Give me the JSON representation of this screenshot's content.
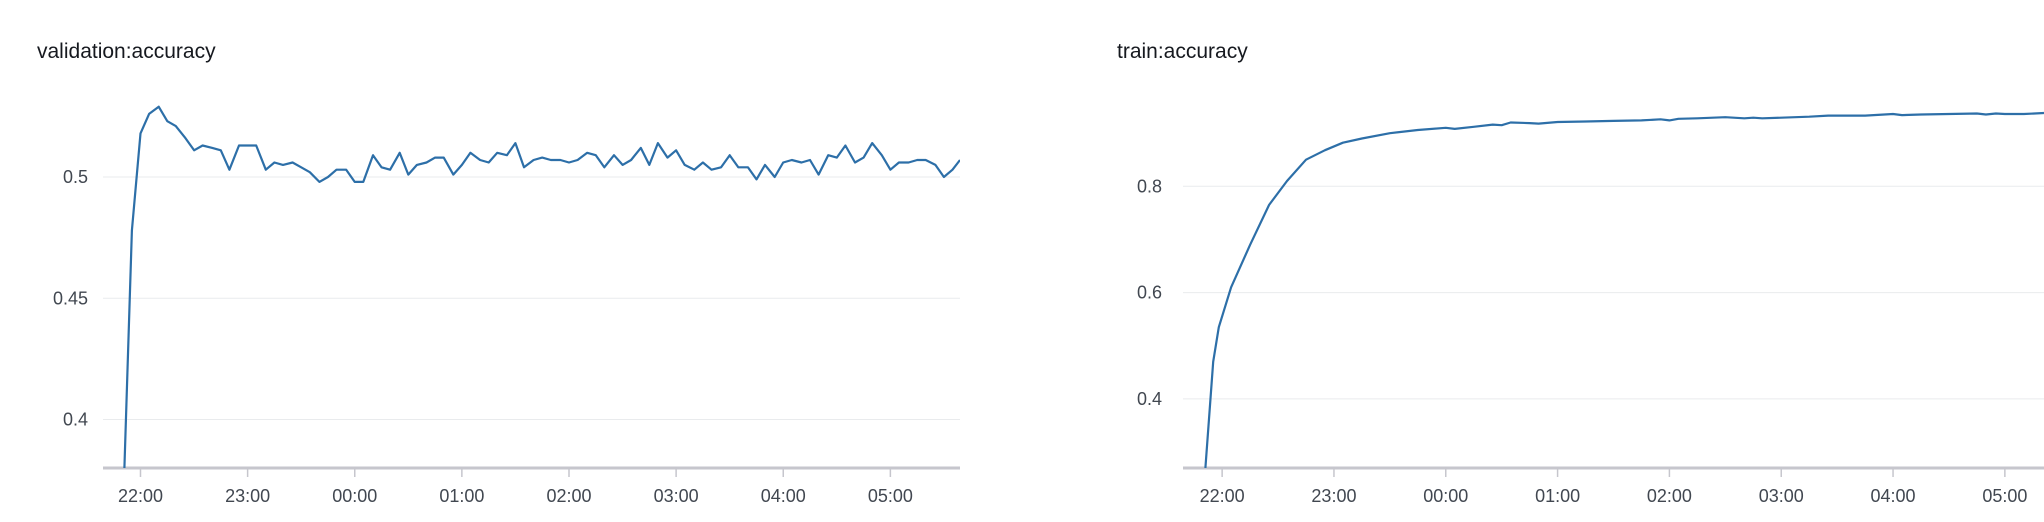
{
  "chart_data": [
    {
      "type": "line",
      "title": "validation:accuracy",
      "xlabel": "",
      "ylabel": "",
      "xlim": [
        21.65,
        29.65
      ],
      "ylim": [
        0.38,
        0.54
      ],
      "yticks": [
        0.4,
        0.45,
        0.5
      ],
      "ytick_labels": [
        "0.4",
        "0.45",
        "0.5"
      ],
      "xticks": [
        22,
        23,
        24,
        25,
        26,
        27,
        28,
        29
      ],
      "xtick_labels": [
        "22:00",
        "23:00",
        "00:00",
        "01:00",
        "02:00",
        "03:00",
        "04:00",
        "05:00"
      ],
      "grid": true,
      "legend": "none",
      "color": "#2d6fa8",
      "series": [
        {
          "x": [
            21.85,
            21.92,
            22.0,
            22.08,
            22.17,
            22.25,
            22.33,
            22.42,
            22.5,
            22.58,
            22.67,
            22.75,
            22.83,
            22.92,
            23.0,
            23.08,
            23.17,
            23.25,
            23.33,
            23.42,
            23.5,
            23.58,
            23.67,
            23.75,
            23.83,
            23.92,
            24.0,
            24.08,
            24.17,
            24.25,
            24.33,
            24.42,
            24.5,
            24.58,
            24.67,
            24.75,
            24.83,
            24.92,
            25.0,
            25.08,
            25.17,
            25.25,
            25.33,
            25.42,
            25.5,
            25.58,
            25.67,
            25.75,
            25.83,
            25.92,
            26.0,
            26.08,
            26.17,
            26.25,
            26.33,
            26.42,
            26.5,
            26.58,
            26.67,
            26.75,
            26.83,
            26.92,
            27.0,
            27.08,
            27.17,
            27.25,
            27.33,
            27.42,
            27.5,
            27.58,
            27.67,
            27.75,
            27.83,
            27.92,
            28.0,
            28.08,
            28.17,
            28.25,
            28.33,
            28.42,
            28.5,
            28.58,
            28.67,
            28.75,
            28.83,
            28.92,
            29.0,
            29.08,
            29.17,
            29.25,
            29.33,
            29.42,
            29.5,
            29.58,
            29.65
          ],
          "y": [
            0.38,
            0.478,
            0.518,
            0.526,
            0.529,
            0.523,
            0.521,
            0.516,
            0.511,
            0.513,
            0.512,
            0.511,
            0.503,
            0.513,
            0.513,
            0.513,
            0.503,
            0.506,
            0.505,
            0.506,
            0.504,
            0.502,
            0.498,
            0.5,
            0.503,
            0.503,
            0.498,
            0.498,
            0.509,
            0.504,
            0.503,
            0.51,
            0.501,
            0.505,
            0.506,
            0.508,
            0.508,
            0.501,
            0.505,
            0.51,
            0.507,
            0.506,
            0.51,
            0.509,
            0.514,
            0.504,
            0.507,
            0.508,
            0.507,
            0.507,
            0.506,
            0.507,
            0.51,
            0.509,
            0.504,
            0.509,
            0.505,
            0.507,
            0.512,
            0.505,
            0.514,
            0.508,
            0.511,
            0.505,
            0.503,
            0.506,
            0.503,
            0.504,
            0.509,
            0.504,
            0.504,
            0.499,
            0.505,
            0.5,
            0.506,
            0.507,
            0.506,
            0.507,
            0.501,
            0.509,
            0.508,
            0.513,
            0.506,
            0.508,
            0.514,
            0.509,
            0.503,
            0.506,
            0.506,
            0.507,
            0.507,
            0.505,
            0.5,
            0.503,
            0.507
          ]
        }
      ]
    },
    {
      "type": "line",
      "title": "train:accuracy",
      "xlabel": "",
      "ylabel": "",
      "xlim": [
        21.65,
        29.35
      ],
      "ylim": [
        0.27,
        1.0
      ],
      "yticks": [
        0.4,
        0.6,
        0.8
      ],
      "ytick_labels": [
        "0.4",
        "0.6",
        "0.8"
      ],
      "xticks": [
        22,
        23,
        24,
        25,
        26,
        27,
        28,
        29
      ],
      "xtick_labels": [
        "22:00",
        "23:00",
        "00:00",
        "01:00",
        "02:00",
        "03:00",
        "04:00",
        "05:00"
      ],
      "grid": true,
      "legend": "none",
      "color": "#2d6fa8",
      "series": [
        {
          "x": [
            21.85,
            21.92,
            21.97,
            22.08,
            22.25,
            22.42,
            22.58,
            22.75,
            22.92,
            23.08,
            23.25,
            23.5,
            23.75,
            24.0,
            24.08,
            24.25,
            24.42,
            24.5,
            24.58,
            24.75,
            24.83,
            25.0,
            25.25,
            25.5,
            25.75,
            25.92,
            26.0,
            26.08,
            26.25,
            26.5,
            26.67,
            26.75,
            26.83,
            27.0,
            27.25,
            27.42,
            27.5,
            27.75,
            28.0,
            28.08,
            28.25,
            28.5,
            28.75,
            28.83,
            28.92,
            29.0,
            29.17,
            29.35
          ],
          "y": [
            0.27,
            0.47,
            0.535,
            0.61,
            0.69,
            0.765,
            0.81,
            0.85,
            0.868,
            0.882,
            0.89,
            0.9,
            0.906,
            0.91,
            0.908,
            0.912,
            0.916,
            0.915,
            0.92,
            0.919,
            0.918,
            0.921,
            0.922,
            0.923,
            0.924,
            0.926,
            0.924,
            0.927,
            0.928,
            0.93,
            0.928,
            0.929,
            0.928,
            0.929,
            0.931,
            0.933,
            0.933,
            0.933,
            0.936,
            0.934,
            0.935,
            0.936,
            0.937,
            0.935,
            0.937,
            0.936,
            0.936,
            0.938
          ]
        }
      ]
    }
  ]
}
